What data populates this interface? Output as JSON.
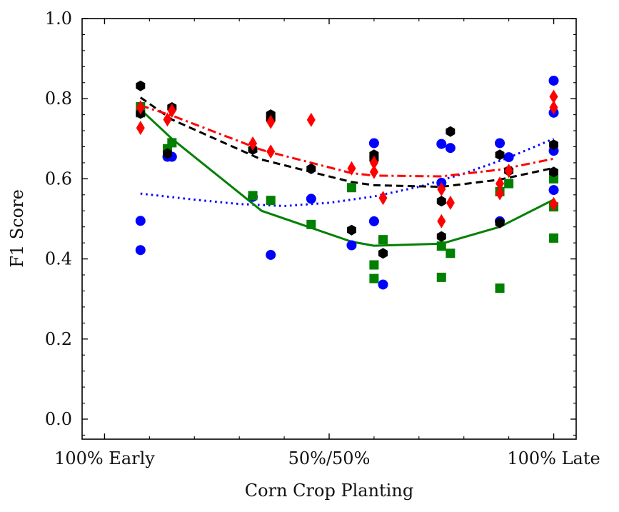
{
  "chart_data": {
    "type": "scatter",
    "title": "",
    "xlabel": "Corn Crop Planting",
    "ylabel": "F1 Score",
    "xlim": [
      -0.05,
      1.05
    ],
    "ylim": [
      -0.05,
      1.0
    ],
    "x_tick_positions": [
      0,
      0.5,
      1
    ],
    "x_tick_labels": [
      "100% Early",
      "50%/50%",
      "100% Late"
    ],
    "y_ticks": [
      0.0,
      0.2,
      0.4,
      0.6,
      0.8,
      1.0
    ],
    "y_tick_labels": [
      "0.0",
      "0.2",
      "0.4",
      "0.6",
      "0.8",
      "1.0"
    ],
    "grid": false,
    "legend": "none",
    "series": [
      {
        "name": "blue",
        "color": "#0000ff",
        "marker": "circle",
        "line_style": "dotted",
        "points": [
          [
            0.08,
            0.495
          ],
          [
            0.08,
            0.422
          ],
          [
            0.14,
            0.655
          ],
          [
            0.15,
            0.655
          ],
          [
            0.33,
            0.555
          ],
          [
            0.37,
            0.41
          ],
          [
            0.46,
            0.55
          ],
          [
            0.55,
            0.434
          ],
          [
            0.6,
            0.689
          ],
          [
            0.6,
            0.494
          ],
          [
            0.62,
            0.336
          ],
          [
            0.75,
            0.687
          ],
          [
            0.75,
            0.59
          ],
          [
            0.77,
            0.677
          ],
          [
            0.88,
            0.689
          ],
          [
            0.88,
            0.494
          ],
          [
            0.9,
            0.654
          ],
          [
            1.0,
            0.845
          ],
          [
            1.0,
            0.765
          ],
          [
            1.0,
            0.67
          ],
          [
            1.0,
            0.572
          ]
        ],
        "trend_x": [
          0.08,
          0.2,
          0.3,
          0.4,
          0.5,
          0.6,
          0.7,
          0.8,
          0.9,
          1.0
        ],
        "trend_y": [
          0.563,
          0.548,
          0.537,
          0.532,
          0.54,
          0.556,
          0.58,
          0.613,
          0.653,
          0.7
        ]
      },
      {
        "name": "green",
        "color": "#008000",
        "marker": "square",
        "line_style": "solid",
        "points": [
          [
            0.08,
            0.78
          ],
          [
            0.08,
            0.765
          ],
          [
            0.14,
            0.675
          ],
          [
            0.15,
            0.69
          ],
          [
            0.33,
            0.558
          ],
          [
            0.37,
            0.546
          ],
          [
            0.46,
            0.486
          ],
          [
            0.55,
            0.578
          ],
          [
            0.6,
            0.385
          ],
          [
            0.6,
            0.351
          ],
          [
            0.62,
            0.448
          ],
          [
            0.75,
            0.432
          ],
          [
            0.75,
            0.354
          ],
          [
            0.77,
            0.414
          ],
          [
            0.88,
            0.327
          ],
          [
            0.88,
            0.568
          ],
          [
            0.9,
            0.588
          ],
          [
            1.0,
            0.6
          ],
          [
            1.0,
            0.53
          ],
          [
            1.0,
            0.452
          ]
        ],
        "trend_x": [
          0.08,
          0.15,
          0.35,
          0.55,
          0.6,
          0.75,
          0.88,
          1.0
        ],
        "trend_y": [
          0.773,
          0.7,
          0.52,
          0.443,
          0.433,
          0.438,
          0.48,
          0.548
        ]
      },
      {
        "name": "black",
        "color": "#000000",
        "marker": "hexagon",
        "line_style": "dashed",
        "points": [
          [
            0.08,
            0.832
          ],
          [
            0.08,
            0.763
          ],
          [
            0.14,
            0.663
          ],
          [
            0.15,
            0.778
          ],
          [
            0.33,
            0.673
          ],
          [
            0.37,
            0.76
          ],
          [
            0.37,
            0.75
          ],
          [
            0.46,
            0.625
          ],
          [
            0.55,
            0.472
          ],
          [
            0.6,
            0.66
          ],
          [
            0.6,
            0.65
          ],
          [
            0.62,
            0.414
          ],
          [
            0.75,
            0.544
          ],
          [
            0.75,
            0.456
          ],
          [
            0.77,
            0.718
          ],
          [
            0.88,
            0.66
          ],
          [
            0.88,
            0.49
          ],
          [
            0.9,
            0.62
          ],
          [
            1.0,
            0.685
          ],
          [
            1.0,
            0.617
          ]
        ],
        "trend_x": [
          0.08,
          0.15,
          0.35,
          0.55,
          0.6,
          0.75,
          0.88,
          1.0
        ],
        "trend_y": [
          0.803,
          0.748,
          0.648,
          0.592,
          0.584,
          0.58,
          0.598,
          0.627
        ]
      },
      {
        "name": "red",
        "color": "#ff0000",
        "marker": "thin_diamond",
        "line_style": "dashdot",
        "points": [
          [
            0.08,
            0.778
          ],
          [
            0.08,
            0.727
          ],
          [
            0.14,
            0.748
          ],
          [
            0.15,
            0.77
          ],
          [
            0.33,
            0.688
          ],
          [
            0.37,
            0.742
          ],
          [
            0.37,
            0.668
          ],
          [
            0.46,
            0.747
          ],
          [
            0.55,
            0.626
          ],
          [
            0.6,
            0.64
          ],
          [
            0.6,
            0.617
          ],
          [
            0.62,
            0.552
          ],
          [
            0.75,
            0.574
          ],
          [
            0.75,
            0.494
          ],
          [
            0.77,
            0.54
          ],
          [
            0.88,
            0.588
          ],
          [
            0.88,
            0.564
          ],
          [
            0.9,
            0.62
          ],
          [
            1.0,
            0.805
          ],
          [
            1.0,
            0.778
          ],
          [
            1.0,
            0.537
          ]
        ],
        "trend_x": [
          0.08,
          0.15,
          0.35,
          0.55,
          0.6,
          0.75,
          0.88,
          1.0
        ],
        "trend_y": [
          0.783,
          0.758,
          0.672,
          0.614,
          0.608,
          0.606,
          0.623,
          0.65
        ]
      }
    ]
  }
}
